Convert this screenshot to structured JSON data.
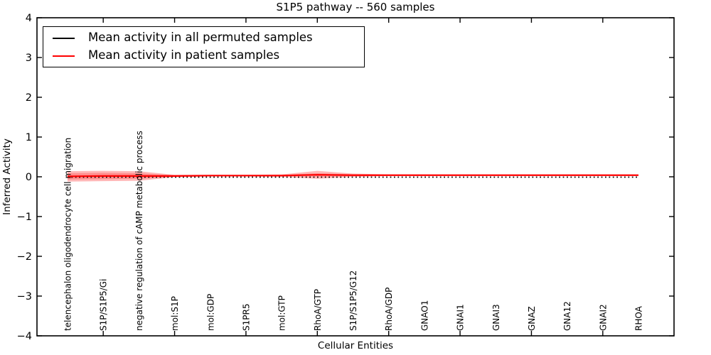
{
  "title": "S1P5 pathway -- 560 samples",
  "legend": {
    "entries": [
      {
        "label": "Mean activity in all permuted samples",
        "color": "#000000"
      },
      {
        "label": "Mean activity in patient samples",
        "color": "#ff0000"
      }
    ]
  },
  "colors": {
    "patient_line": "#ff0000",
    "permuted_line": "#000000",
    "band_fill": "#ff0000",
    "frame": "#000000"
  },
  "chart_data": {
    "type": "line",
    "title": "S1P5 pathway -- 560 samples",
    "xlabel": "Cellular Entities",
    "ylabel": "Inferred Activity",
    "ylim": [
      -4,
      4
    ],
    "yticks": [
      -4,
      -3,
      -2,
      -1,
      0,
      1,
      2,
      3,
      4
    ],
    "grid": false,
    "legend_position": "upper left",
    "categories": [
      "telencephalon oligodendrocyte cell migration",
      "S1P/S1P5/Gi",
      "negative regulation of cAMP metabolic process",
      "mol:S1P",
      "mol:GDP",
      "S1PR5",
      "mol:GTP",
      "RhoA/GTP",
      "S1P/S1P5/G12",
      "RhoA/GDP",
      "GNAO1",
      "GNAI1",
      "GNAI3",
      "GNAZ",
      "GNA12",
      "GNAI2",
      "RHOA"
    ],
    "series": [
      {
        "name": "Mean activity in all permuted samples",
        "color": "#000000",
        "style": "dotted",
        "values": [
          0,
          0,
          0,
          0,
          0,
          0,
          0,
          0,
          0,
          0,
          0,
          0,
          0,
          0,
          0,
          0,
          0
        ]
      },
      {
        "name": "Mean activity in patient samples",
        "color": "#ff0000",
        "style": "solid",
        "values": [
          0.01,
          0.02,
          0.02,
          0.02,
          0.03,
          0.03,
          0.03,
          0.05,
          0.04,
          0.04,
          0.04,
          0.04,
          0.04,
          0.04,
          0.04,
          0.04,
          0.04
        ]
      }
    ],
    "band": {
      "description": "red shaded spread around patient mean",
      "color": "#ff0000",
      "outer_halfwidth": [
        0.13,
        0.13,
        0.12,
        0.03,
        0.02,
        0.02,
        0.03,
        0.1,
        0.04,
        0.02,
        0.015,
        0.012,
        0.012,
        0.012,
        0.012,
        0.012,
        0.012
      ],
      "inner_halfwidth": [
        0.08,
        0.08,
        0.07,
        0.02,
        0.01,
        0.01,
        0.015,
        0.04,
        0.02,
        0.01,
        0.008,
        0.006,
        0.006,
        0.006,
        0.006,
        0.006,
        0.006
      ]
    }
  }
}
